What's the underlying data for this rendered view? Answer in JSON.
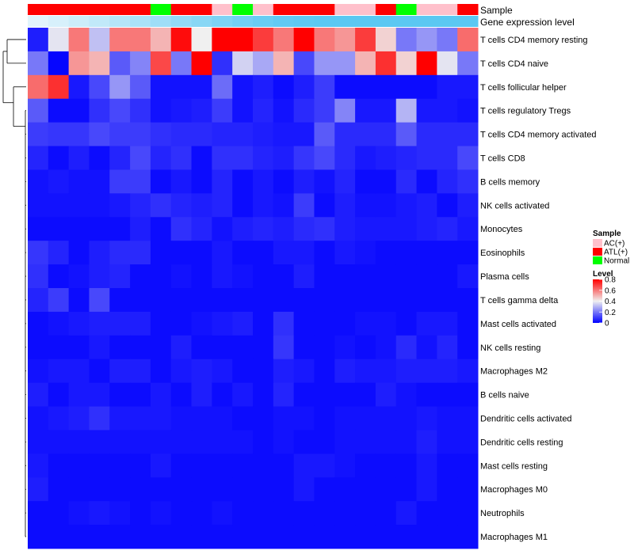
{
  "chart_data": {
    "type": "heatmap",
    "title": "",
    "annotations": {
      "sample_label": "Sample",
      "expression_label": "Gene expression level",
      "samples": [
        "ATL(+)",
        "ATL(+)",
        "ATL(+)",
        "ATL(+)",
        "ATL(+)",
        "ATL(+)",
        "Normal",
        "ATL(+)",
        "ATL(+)",
        "AC(+)",
        "Normal",
        "AC(+)",
        "ATL(+)",
        "ATL(+)",
        "ATL(+)",
        "AC(+)",
        "AC(+)",
        "ATL(+)",
        "Normal",
        "AC(+)",
        "AC(+)",
        "ATL(+)"
      ],
      "expression": [
        0.05,
        0.12,
        0.2,
        0.28,
        0.36,
        0.44,
        0.52,
        0.6,
        0.68,
        0.76,
        0.84,
        0.9,
        0.95,
        0.98,
        1,
        1,
        1,
        1,
        1,
        1,
        1,
        1
      ]
    },
    "rows": [
      "T cells CD4 memory resting",
      "T cells CD4 naive",
      "T cells follicular helper",
      "T cells regulatory  Tregs",
      "T cells CD4 memory activated",
      "T cells CD8",
      "B cells memory",
      "NK cells activated",
      "Monocytes",
      "Eosinophils",
      "Plasma cells",
      "T cells gamma delta",
      "Mast cells activated",
      "NK cells resting",
      "Macrophages M2",
      "B cells naive",
      "Dendritic cells activated",
      "Dendritic cells resting",
      "Mast cells resting",
      "Macrophages M0",
      "Neutrophils",
      "Macrophages M1"
    ],
    "values": [
      [
        0.05,
        0.38,
        0.6,
        0.32,
        0.6,
        0.6,
        0.5,
        0.78,
        0.4,
        0.8,
        0.8,
        0.7,
        0.6,
        0.8,
        0.6,
        0.55,
        0.7,
        0.45,
        0.2,
        0.25,
        0.2,
        0.62
      ],
      [
        0.2,
        0.01,
        0.55,
        0.5,
        0.15,
        0.22,
        0.68,
        0.2,
        0.8,
        0.08,
        0.35,
        0.28,
        0.5,
        0.12,
        0.25,
        0.25,
        0.5,
        0.72,
        0.45,
        0.8,
        0.38,
        0.2
      ],
      [
        0.62,
        0.72,
        0.04,
        0.12,
        0.25,
        0.15,
        0.03,
        0.03,
        0.03,
        0.18,
        0.03,
        0.05,
        0.02,
        0.05,
        0.1,
        0.02,
        0.02,
        0.02,
        0.02,
        0.02,
        0.04,
        0.04
      ],
      [
        0.15,
        0.02,
        0.02,
        0.08,
        0.12,
        0.08,
        0.03,
        0.04,
        0.05,
        0.1,
        0.03,
        0.06,
        0.03,
        0.07,
        0.1,
        0.22,
        0.04,
        0.04,
        0.3,
        0.04,
        0.04,
        0.03
      ],
      [
        0.1,
        0.09,
        0.09,
        0.12,
        0.1,
        0.1,
        0.08,
        0.07,
        0.07,
        0.06,
        0.06,
        0.05,
        0.04,
        0.04,
        0.15,
        0.07,
        0.07,
        0.07,
        0.15,
        0.07,
        0.07,
        0.07
      ],
      [
        0.06,
        0.02,
        0.05,
        0.02,
        0.06,
        0.12,
        0.06,
        0.08,
        0.02,
        0.08,
        0.08,
        0.06,
        0.05,
        0.09,
        0.12,
        0.07,
        0.04,
        0.05,
        0.06,
        0.07,
        0.07,
        0.12
      ],
      [
        0.03,
        0.04,
        0.03,
        0.03,
        0.1,
        0.1,
        0.02,
        0.04,
        0.02,
        0.06,
        0.02,
        0.04,
        0.02,
        0.05,
        0.03,
        0.06,
        0.02,
        0.02,
        0.07,
        0.02,
        0.06,
        0.08
      ],
      [
        0.03,
        0.03,
        0.03,
        0.03,
        0.04,
        0.06,
        0.08,
        0.06,
        0.05,
        0.06,
        0.02,
        0.04,
        0.03,
        0.1,
        0.02,
        0.05,
        0.03,
        0.03,
        0.04,
        0.05,
        0.02,
        0.05
      ],
      [
        0.02,
        0.02,
        0.02,
        0.02,
        0.02,
        0.05,
        0.02,
        0.08,
        0.06,
        0.03,
        0.05,
        0.06,
        0.05,
        0.07,
        0.08,
        0.05,
        0.04,
        0.04,
        0.04,
        0.05,
        0.06,
        0.04
      ],
      [
        0.09,
        0.06,
        0.02,
        0.05,
        0.07,
        0.07,
        0.02,
        0.02,
        0.02,
        0.04,
        0.02,
        0.02,
        0.04,
        0.04,
        0.02,
        0.04,
        0.03,
        0.02,
        0.02,
        0.02,
        0.02,
        0.02
      ],
      [
        0.08,
        0.02,
        0.03,
        0.05,
        0.06,
        0.02,
        0.02,
        0.03,
        0.02,
        0.04,
        0.03,
        0.02,
        0.02,
        0.05,
        0.02,
        0.02,
        0.02,
        0.02,
        0.02,
        0.02,
        0.02,
        0.04
      ],
      [
        0.06,
        0.1,
        0.02,
        0.12,
        0.02,
        0.02,
        0.02,
        0.02,
        0.02,
        0.02,
        0.02,
        0.02,
        0.02,
        0.02,
        0.02,
        0.02,
        0.02,
        0.02,
        0.02,
        0.02,
        0.02,
        0.02
      ],
      [
        0.02,
        0.03,
        0.04,
        0.05,
        0.05,
        0.05,
        0.02,
        0.02,
        0.03,
        0.04,
        0.05,
        0.02,
        0.08,
        0.02,
        0.02,
        0.02,
        0.03,
        0.03,
        0.02,
        0.04,
        0.04,
        0.02
      ],
      [
        0.02,
        0.02,
        0.02,
        0.04,
        0.02,
        0.02,
        0.02,
        0.05,
        0.02,
        0.02,
        0.02,
        0.02,
        0.09,
        0.02,
        0.02,
        0.03,
        0.02,
        0.03,
        0.07,
        0.03,
        0.06,
        0.02
      ],
      [
        0.03,
        0.04,
        0.04,
        0.02,
        0.05,
        0.05,
        0.02,
        0.04,
        0.05,
        0.04,
        0.02,
        0.02,
        0.05,
        0.04,
        0.02,
        0.05,
        0.04,
        0.04,
        0.05,
        0.05,
        0.05,
        0.04
      ],
      [
        0.05,
        0.02,
        0.04,
        0.04,
        0.02,
        0.02,
        0.04,
        0.02,
        0.05,
        0.02,
        0.04,
        0.02,
        0.06,
        0.02,
        0.02,
        0.02,
        0.02,
        0.05,
        0.03,
        0.02,
        0.02,
        0.02
      ],
      [
        0.03,
        0.04,
        0.05,
        0.08,
        0.04,
        0.04,
        0.04,
        0.03,
        0.03,
        0.03,
        0.02,
        0.02,
        0.03,
        0.03,
        0.02,
        0.03,
        0.03,
        0.03,
        0.03,
        0.04,
        0.03,
        0.03
      ],
      [
        0.03,
        0.03,
        0.03,
        0.03,
        0.03,
        0.03,
        0.03,
        0.03,
        0.03,
        0.03,
        0.03,
        0.02,
        0.03,
        0.02,
        0.02,
        0.03,
        0.03,
        0.03,
        0.03,
        0.05,
        0.03,
        0.03
      ],
      [
        0.04,
        0.02,
        0.02,
        0.02,
        0.02,
        0.02,
        0.04,
        0.02,
        0.02,
        0.02,
        0.02,
        0.02,
        0.02,
        0.04,
        0.04,
        0.03,
        0.02,
        0.02,
        0.02,
        0.04,
        0.02,
        0.02
      ],
      [
        0.05,
        0.02,
        0.02,
        0.02,
        0.02,
        0.02,
        0.02,
        0.02,
        0.02,
        0.02,
        0.02,
        0.02,
        0.02,
        0.04,
        0.02,
        0.02,
        0.02,
        0.02,
        0.02,
        0.04,
        0.02,
        0.02
      ],
      [
        0.02,
        0.02,
        0.03,
        0.04,
        0.03,
        0.02,
        0.03,
        0.02,
        0.02,
        0.03,
        0.02,
        0.02,
        0.02,
        0.02,
        0.02,
        0.02,
        0.02,
        0.02,
        0.04,
        0.02,
        0.02,
        0.02
      ],
      [
        0.02,
        0.02,
        0.02,
        0.02,
        0.02,
        0.02,
        0.02,
        0.02,
        0.02,
        0.02,
        0.02,
        0.02,
        0.02,
        0.02,
        0.02,
        0.02,
        0.02,
        0.02,
        0.02,
        0.02,
        0.02,
        0.02
      ]
    ],
    "legend": {
      "sample_title": "Sample",
      "sample_entries": [
        {
          "label": "AC(+)",
          "color": "#ffc0cb"
        },
        {
          "label": "ATL(+)",
          "color": "#ff0000"
        },
        {
          "label": "Normal",
          "color": "#00ff00"
        }
      ],
      "level_title": "Level",
      "level_ticks": [
        "0.8",
        "0.6",
        "0.4",
        "0.2",
        "0"
      ],
      "level_tick_values": [
        0.8,
        0.6,
        0.4,
        0.2,
        0
      ],
      "level_range": [
        0,
        0.8
      ]
    },
    "colors": {
      "low": "#0000ff",
      "mid": "#f0f0f0",
      "high": "#ff0000",
      "expr_low": "#e8f6fc",
      "expr_high": "#5bc8f2"
    },
    "dendrogram": true
  }
}
